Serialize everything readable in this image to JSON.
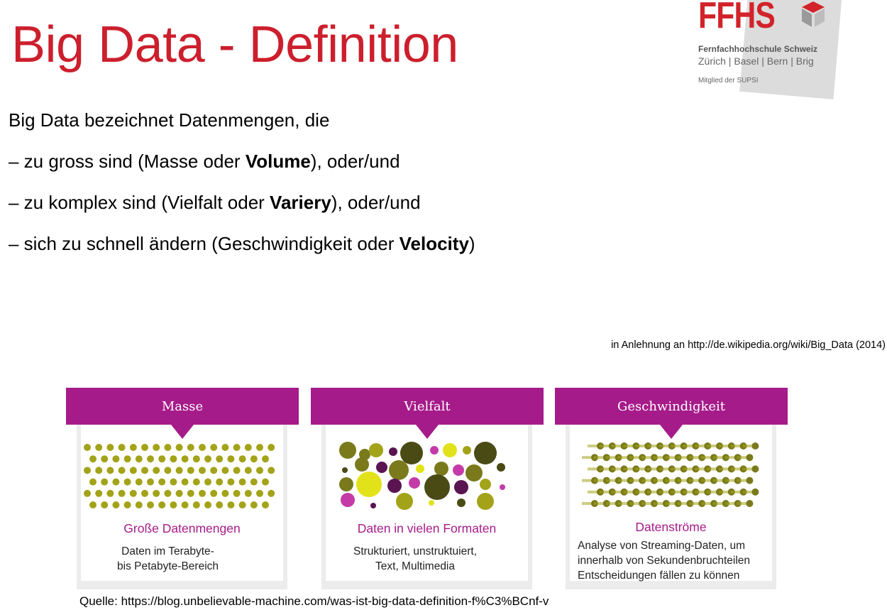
{
  "slide": {
    "title": "Big Data - Definition",
    "intro": "Big Data bezeichnet Datenmengen, die",
    "items": [
      {
        "pre": "– zu gross sind (Masse oder ",
        "bold": "Volume",
        "post": "), oder/und"
      },
      {
        "pre": "– zu komplex sind (Vielfalt oder ",
        "bold": "Variery",
        "post": "), oder/und"
      },
      {
        "pre": "– sich zu schnell ändern (Geschwindigkeit oder ",
        "bold": "Velocity",
        "post": ")"
      }
    ],
    "note": "in Anlehnung an http://de.wikipedia.org/wiki/Big_Data (2014)",
    "source": "Quelle: https://blog.unbelievable-machine.com/was-ist-big-data-definition-f%C3%BCnf-v"
  },
  "logo": {
    "name": "FFHS",
    "line1": "Fernfachhochschule Schweiz",
    "line2": "Zürich | Basel | Bern | Brig",
    "line3": "Mitglied der SUPSI",
    "color": "#d2232a"
  },
  "colors": {
    "title": "#cc1f2d",
    "panel_header": "#a61b8a",
    "dot_yellow_green": "#a3a31a",
    "dot_olive": "#7a7a1c",
    "dot_dark_olive": "#4a4a14",
    "dot_yellow": "#e2e21a",
    "dot_magenta": "#c43ba7",
    "dot_purple": "#5a1450"
  },
  "panels": [
    {
      "header": "Masse",
      "subtitle": "Große Datenmengen",
      "description": "Daten im Terabyte-\nbis Petabyte-Bereich",
      "graphic_icon": "dot-grid-icon"
    },
    {
      "header": "Vielfalt",
      "subtitle": "Daten in vielen Formaten",
      "description": "Strukturiert, unstruktuiert,\nText, Multimedia",
      "graphic_icon": "mixed-circles-icon"
    },
    {
      "header": "Geschwindigkeit",
      "subtitle": "Datenströme",
      "description": "Analyse von Streaming-Daten, um\ninnerhalb von Sekundenbruchteilen\nEntscheidungen fällen zu können",
      "graphic_icon": "streaming-dots-icon"
    }
  ]
}
